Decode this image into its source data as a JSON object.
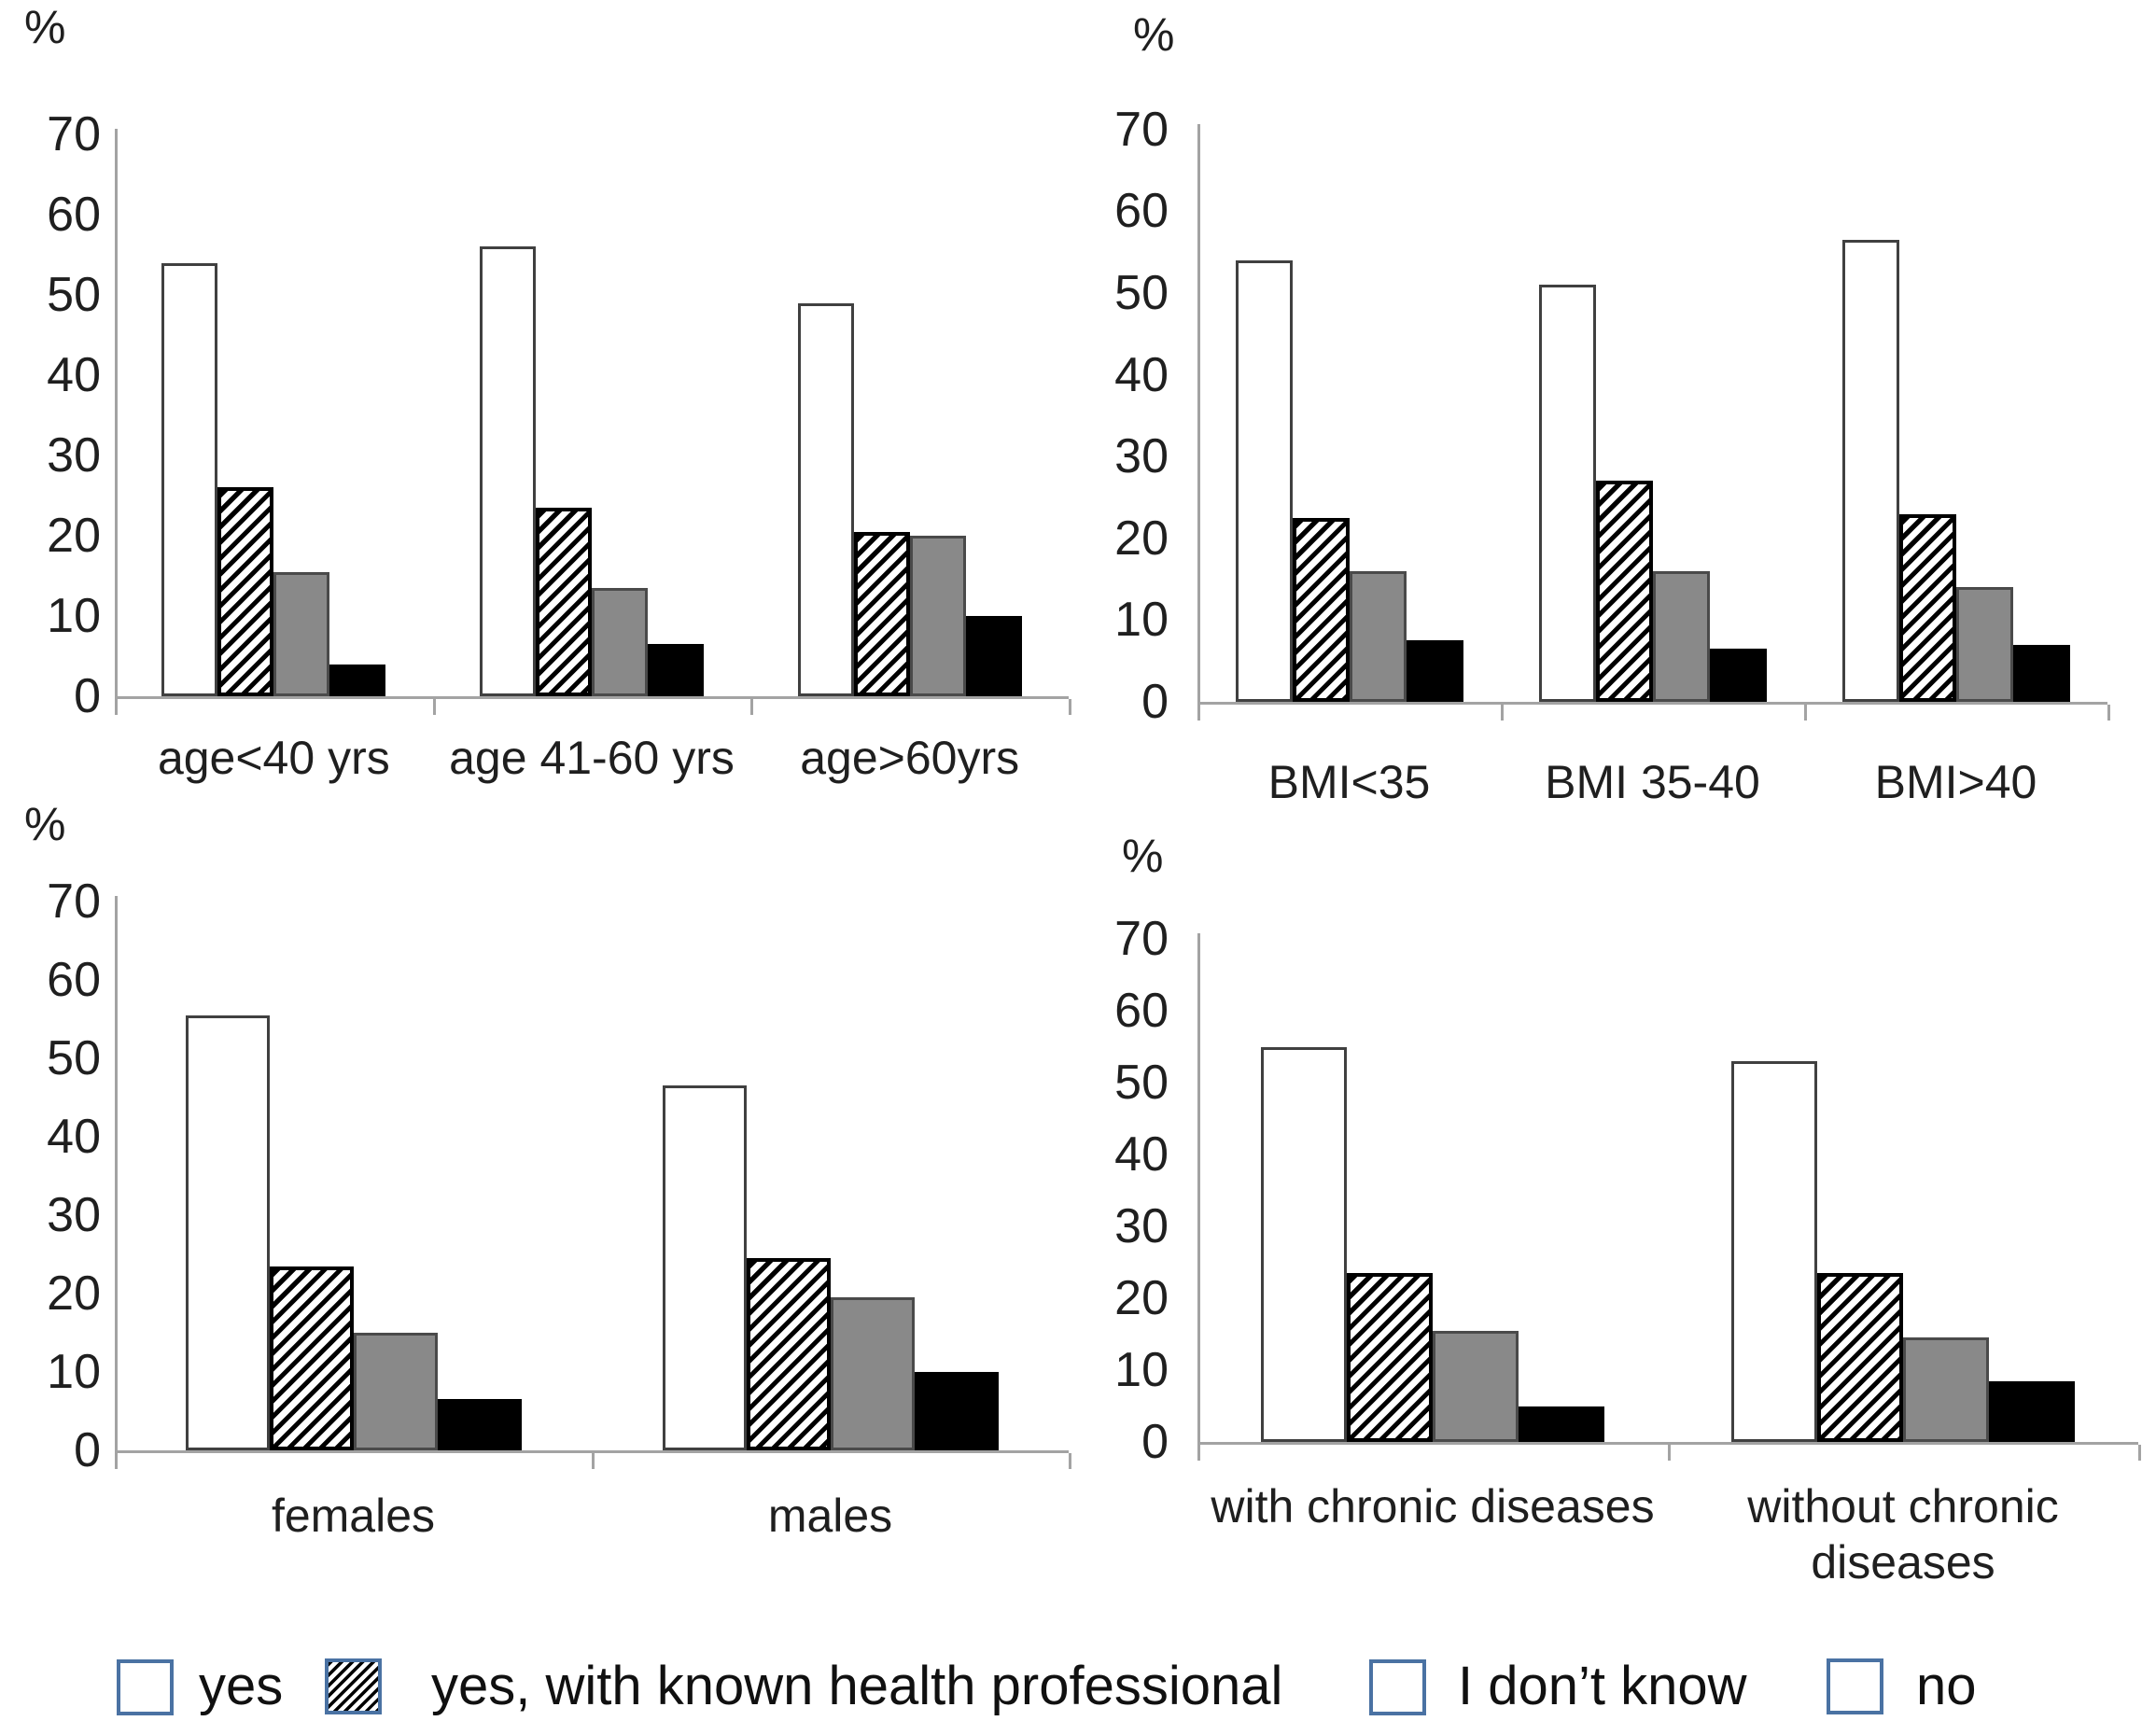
{
  "page": {
    "background": "#ffffff"
  },
  "colors": {
    "axis": "#a3a3a3",
    "text": "#1f1f1f",
    "white_fill": "#ffffff",
    "white_outline": "#404040",
    "hatch_fg": "#000000",
    "gray_fill": "#898989",
    "gray_outline": "#4a4a4a",
    "black_fill": "#000000",
    "legend_swatch_border": "#4a72a3"
  },
  "legend": {
    "position": "bottom",
    "items": [
      {
        "label": "yes",
        "pattern": "solid",
        "fill": "#ffffff"
      },
      {
        "label": "yes, with known health professional",
        "pattern": "diagonal-hatch",
        "fill": "#000000"
      },
      {
        "label": "I don’t know",
        "pattern": "solid",
        "fill": "#898989"
      },
      {
        "label": "no",
        "pattern": "solid",
        "fill": "#000000"
      }
    ]
  },
  "chart_data": [
    {
      "type": "bar",
      "position": "top-left",
      "ylabel": "%",
      "ylim": [
        0,
        70
      ],
      "yticks": [
        0,
        10,
        20,
        30,
        40,
        50,
        60,
        70
      ],
      "grid": false,
      "categories": [
        "age<40 yrs",
        "age 41-60 yrs",
        "age>60yrs"
      ],
      "series": [
        {
          "name": "yes",
          "values": [
            54,
            56,
            49
          ]
        },
        {
          "name": "yes, with known health professional",
          "values": [
            26,
            23.5,
            20.5
          ]
        },
        {
          "name": "I don’t know",
          "values": [
            15.5,
            13.5,
            20
          ]
        },
        {
          "name": "no",
          "values": [
            4,
            6.5,
            10
          ]
        }
      ]
    },
    {
      "type": "bar",
      "position": "top-right",
      "ylabel": "%",
      "ylim": [
        0,
        70
      ],
      "yticks": [
        0,
        10,
        20,
        30,
        40,
        50,
        60,
        70
      ],
      "grid": false,
      "categories": [
        "BMI<35",
        "BMI 35-40",
        "BMI>40"
      ],
      "series": [
        {
          "name": "yes",
          "values": [
            54,
            51,
            56.5
          ]
        },
        {
          "name": "yes, with known health professional",
          "values": [
            22.5,
            27,
            23
          ]
        },
        {
          "name": "I don’t know",
          "values": [
            16,
            16,
            14
          ]
        },
        {
          "name": "no",
          "values": [
            7.5,
            6.5,
            7
          ]
        }
      ]
    },
    {
      "type": "bar",
      "position": "bottom-left",
      "ylabel": "%",
      "ylim": [
        0,
        70
      ],
      "yticks": [
        0,
        10,
        20,
        30,
        40,
        50,
        60,
        70
      ],
      "grid": false,
      "categories": [
        "females",
        "males"
      ],
      "series": [
        {
          "name": "yes",
          "values": [
            55.5,
            46.5
          ]
        },
        {
          "name": "yes, with known health professional",
          "values": [
            23.5,
            24.5
          ]
        },
        {
          "name": "I don’t know",
          "values": [
            15,
            19.5
          ]
        },
        {
          "name": "no",
          "values": [
            6.5,
            10
          ]
        }
      ]
    },
    {
      "type": "bar",
      "position": "bottom-right",
      "ylabel": "%",
      "ylim": [
        0,
        70
      ],
      "yticks": [
        0,
        10,
        20,
        30,
        40,
        50,
        60,
        70
      ],
      "grid": false,
      "categories": [
        "with chronic diseases",
        "without chronic diseases"
      ],
      "series": [
        {
          "name": "yes",
          "values": [
            55,
            53
          ]
        },
        {
          "name": "yes, with known health professional",
          "values": [
            23.5,
            23.5
          ]
        },
        {
          "name": "I don’t know",
          "values": [
            15.5,
            14.5
          ]
        },
        {
          "name": "no",
          "values": [
            5,
            8.5
          ]
        }
      ]
    }
  ]
}
